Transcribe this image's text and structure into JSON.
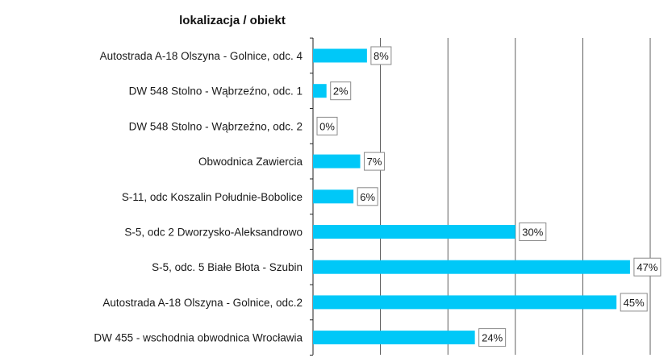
{
  "chart_data": {
    "type": "bar",
    "orientation": "horizontal",
    "title": "lokalizacja / obiekt",
    "categories": [
      "Autostrada A-18 Olszyna - Golnice, odc. 4",
      "DW 548 Stolno - Wąbrzeźno, odc. 1",
      "DW 548 Stolno - Wąbrzeźno, odc. 2",
      "Obwodnica Zawiercia",
      "S-11, odc Koszalin Południe-Bobolice",
      "S-5, odc 2 Dworzysko-Aleksandrowo",
      "S-5, odc. 5 Białe Błota - Szubin",
      "Autostrada A-18 Olszyna - Golnice, odc.2",
      "DW 455 - wschodnia obwodnica Wrocławia"
    ],
    "values": [
      8,
      2,
      0,
      7,
      6,
      30,
      47,
      45,
      24
    ],
    "data_labels": [
      "8%",
      "2%",
      "0%",
      "7%",
      "6%",
      "30%",
      "47%",
      "45%",
      "24%"
    ],
    "unit": "%",
    "xlim": [
      0,
      50
    ],
    "grid": true,
    "bar_color": "#00c8f8"
  }
}
